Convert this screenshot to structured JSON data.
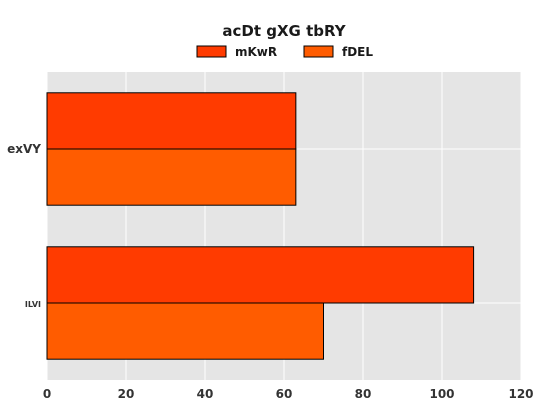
{
  "chart_data": {
    "type": "bar",
    "orientation": "horizontal",
    "title": "acDt gXG tbRY",
    "categories": [
      "exVY",
      "ILVI"
    ],
    "series": [
      {
        "name": "mKwR",
        "values": [
          63,
          108
        ],
        "color": "#ff3b00"
      },
      {
        "name": "fDEL",
        "values": [
          63,
          70
        ],
        "color": "#ff5c00"
      }
    ],
    "xlim": [
      0,
      120
    ],
    "xticks": [
      "0",
      "20",
      "40",
      "60",
      "80",
      "100",
      "120"
    ],
    "xlabel": "",
    "ylabel": "",
    "grid": true,
    "legend_position": "top-center",
    "background": "#e5e5e5",
    "grid_color": "#ffffff"
  }
}
